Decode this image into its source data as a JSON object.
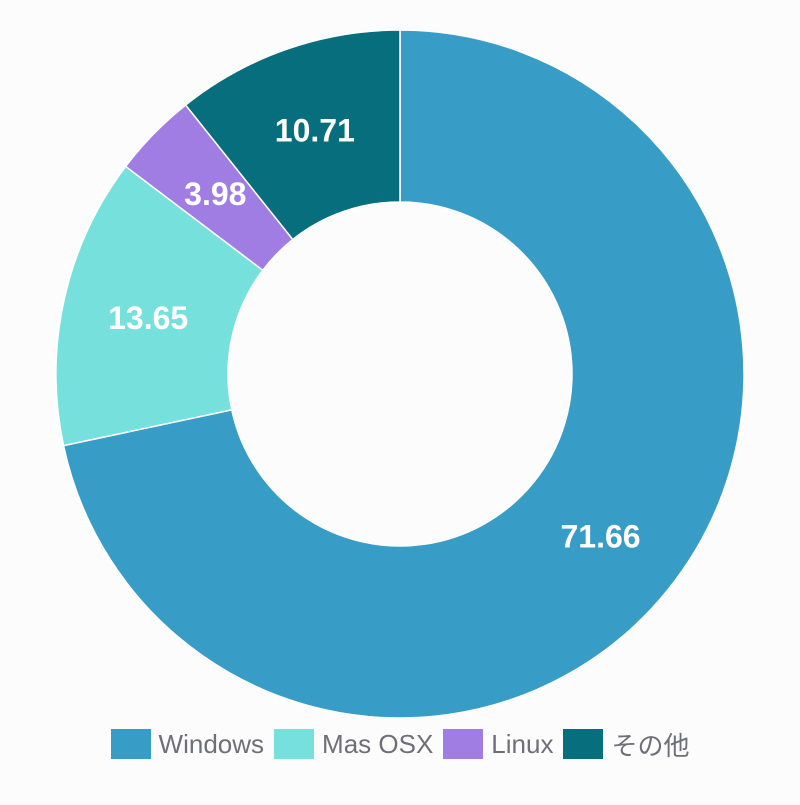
{
  "chart_data": {
    "type": "pie",
    "title": "",
    "categories": [
      "Windows",
      "Mas OSX",
      "Linux",
      "その他"
    ],
    "values": [
      71.66,
      13.65,
      3.98,
      10.71
    ],
    "value_labels": [
      "71.66",
      "13.65",
      "3.98",
      "10.71"
    ],
    "colors": [
      "#379dc6",
      "#76e1dc",
      "#a07de2",
      "#066e7c"
    ],
    "donut": true,
    "legend_position": "bottom"
  }
}
